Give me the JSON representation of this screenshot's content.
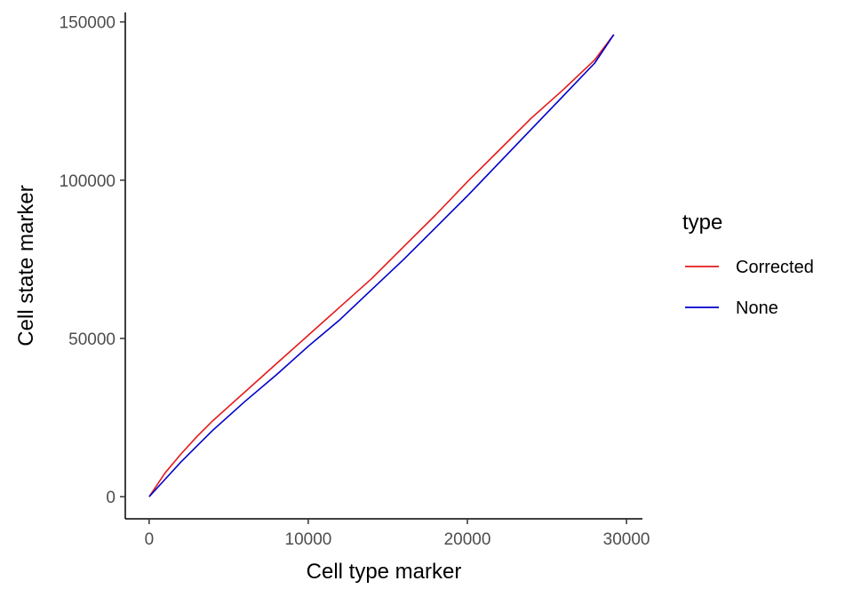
{
  "chart_data": {
    "type": "line",
    "title": "",
    "xlabel": "Cell type marker",
    "ylabel": "Cell state marker",
    "xlim": [
      -1500,
      31000
    ],
    "ylim": [
      -7000,
      153000
    ],
    "x_ticks": [
      0,
      10000,
      20000,
      30000
    ],
    "x_tick_labels": [
      "0",
      "10000",
      "20000",
      "30000"
    ],
    "y_ticks": [
      0,
      50000,
      100000,
      150000
    ],
    "y_tick_labels": [
      "0",
      "50000",
      "100000",
      "150000"
    ],
    "grid": false,
    "legend": {
      "title": "type",
      "placement": "right"
    },
    "series": [
      {
        "name": "Corrected",
        "color": "#e41a1c",
        "x": [
          0,
          1000,
          2000,
          3000,
          4000,
          6000,
          8000,
          10000,
          12000,
          14000,
          16000,
          18000,
          20000,
          22000,
          24000,
          26000,
          28000,
          29200
        ],
        "y": [
          0,
          7500,
          13500,
          19000,
          24000,
          33000,
          42000,
          51000,
          60000,
          69000,
          79000,
          89000,
          99500,
          109500,
          119500,
          128500,
          138000,
          146000
        ]
      },
      {
        "name": "None",
        "color": "#0000cc",
        "x": [
          0,
          1000,
          2000,
          3000,
          4000,
          6000,
          8000,
          10000,
          12000,
          14000,
          16000,
          18000,
          20000,
          22000,
          24000,
          26000,
          28000,
          29200
        ],
        "y": [
          0,
          5500,
          11000,
          16000,
          21000,
          30000,
          38500,
          47500,
          56000,
          65500,
          75000,
          85000,
          95000,
          105500,
          116000,
          126500,
          137000,
          146000
        ]
      }
    ]
  }
}
